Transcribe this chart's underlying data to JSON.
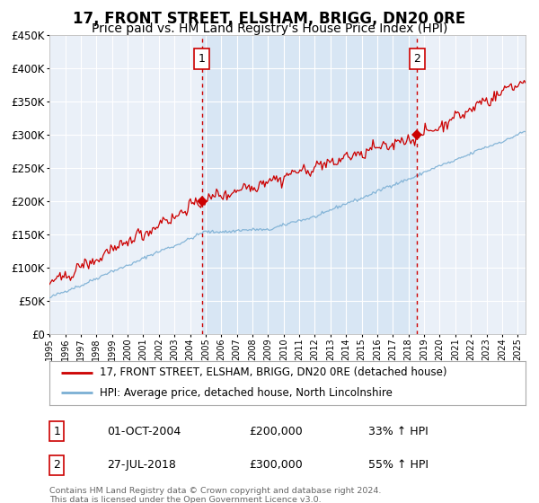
{
  "title": "17, FRONT STREET, ELSHAM, BRIGG, DN20 0RE",
  "subtitle": "Price paid vs. HM Land Registry's House Price Index (HPI)",
  "footnote": "Contains HM Land Registry data © Crown copyright and database right 2024.\nThis data is licensed under the Open Government Licence v3.0.",
  "legend_line1": "17, FRONT STREET, ELSHAM, BRIGG, DN20 0RE (detached house)",
  "legend_line2": "HPI: Average price, detached house, North Lincolnshire",
  "sale1_date": "01-OCT-2004",
  "sale1_price": "£200,000",
  "sale1_hpi": "33% ↑ HPI",
  "sale1_year": 2004.75,
  "sale1_value": 200000,
  "sale2_date": "27-JUL-2018",
  "sale2_price": "£300,000",
  "sale2_hpi": "55% ↑ HPI",
  "sale2_year": 2018.56,
  "sale2_value": 300000,
  "ylim": [
    0,
    450000
  ],
  "yticks": [
    0,
    50000,
    100000,
    150000,
    200000,
    250000,
    300000,
    350000,
    400000,
    450000
  ],
  "xlim_start": 1995.0,
  "xlim_end": 2025.5,
  "background_color": "#ffffff",
  "plot_bg_color": "#eaf0f8",
  "grid_color": "#ffffff",
  "red_line_color": "#cc0000",
  "blue_line_color": "#7bafd4",
  "vline_color": "#cc0000",
  "highlight_bg": "#d8e6f4",
  "title_fontsize": 12,
  "subtitle_fontsize": 10,
  "seed": 42
}
